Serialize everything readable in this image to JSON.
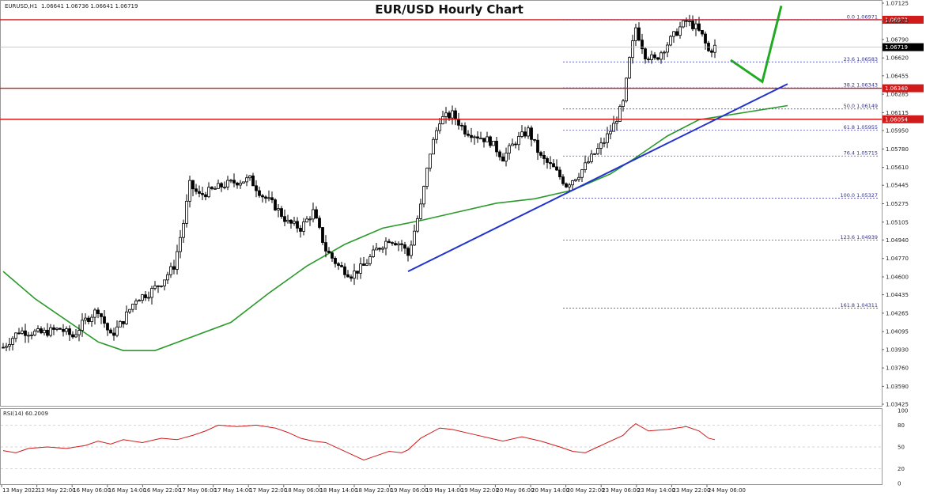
{
  "symbol_label": "EURUSD,H1",
  "ohlc_label": "1.06641 1.06736 1.06641 1.06719",
  "title": "EUR/USD Hourly Chart",
  "rsi_label": "RSI(14) 60.2009",
  "colors": {
    "candle": "#000000",
    "bull_fill": "#ffffff",
    "ma": "#2a9a2a",
    "trendline": "#2233cc",
    "resistance": "#d11a1a",
    "projection": "#22aa22",
    "fib": "#3333aa",
    "rsi": "#d11a1a",
    "grid": "#c8c8c8"
  },
  "chart_data": {
    "type": "candlestick",
    "title": "EUR/USD Hourly Chart",
    "ylim": [
      1.03425,
      1.07125
    ],
    "y_ticks": [
      "1.07125",
      "1.06960",
      "1.06790",
      "1.06620",
      "1.06455",
      "1.06285",
      "1.06115",
      "1.05950",
      "1.05780",
      "1.05610",
      "1.05445",
      "1.05275",
      "1.05105",
      "1.04940",
      "1.04770",
      "1.04600",
      "1.04435",
      "1.04265",
      "1.04095",
      "1.03930",
      "1.03760",
      "1.03590",
      "1.03425"
    ],
    "x_ticks": [
      "13 May 2022",
      "13 May 22:00",
      "16 May 06:00",
      "16 May 14:00",
      "16 May 22:00",
      "17 May 06:00",
      "17 May 14:00",
      "17 May 22:00",
      "18 May 06:00",
      "18 May 14:00",
      "18 May 22:00",
      "19 May 06:00",
      "19 May 14:00",
      "19 May 22:00",
      "20 May 06:00",
      "20 May 14:00",
      "20 May 22:00",
      "23 May 06:00",
      "23 May 14:00",
      "23 May 22:00",
      "24 May 06:00"
    ],
    "price_anchors": [
      [
        0,
        1.0395
      ],
      [
        5,
        1.041
      ],
      [
        12,
        1.0408
      ],
      [
        18,
        1.0412
      ],
      [
        22,
        1.0405
      ],
      [
        26,
        1.042
      ],
      [
        30,
        1.043
      ],
      [
        34,
        1.0405
      ],
      [
        38,
        1.042
      ],
      [
        42,
        1.044
      ],
      [
        46,
        1.0445
      ],
      [
        50,
        1.0455
      ],
      [
        54,
        1.047
      ],
      [
        57,
        1.051
      ],
      [
        59,
        1.0545
      ],
      [
        62,
        1.0535
      ],
      [
        66,
        1.054
      ],
      [
        70,
        1.0545
      ],
      [
        74,
        1.0548
      ],
      [
        78,
        1.055
      ],
      [
        82,
        1.0535
      ],
      [
        86,
        1.0525
      ],
      [
        90,
        1.051
      ],
      [
        94,
        1.0505
      ],
      [
        98,
        1.052
      ],
      [
        102,
        1.0485
      ],
      [
        106,
        1.047
      ],
      [
        110,
        1.0462
      ],
      [
        114,
        1.047
      ],
      [
        118,
        1.0485
      ],
      [
        122,
        1.0495
      ],
      [
        126,
        1.049
      ],
      [
        128,
        1.048
      ],
      [
        132,
        1.0525
      ],
      [
        135,
        1.0575
      ],
      [
        138,
        1.0605
      ],
      [
        142,
        1.061
      ],
      [
        146,
        1.0595
      ],
      [
        150,
        1.059
      ],
      [
        154,
        1.0585
      ],
      [
        158,
        1.057
      ],
      [
        162,
        1.0585
      ],
      [
        166,
        1.0595
      ],
      [
        170,
        1.057
      ],
      [
        174,
        1.056
      ],
      [
        178,
        1.0545
      ],
      [
        182,
        1.0555
      ],
      [
        186,
        1.057
      ],
      [
        190,
        1.0585
      ],
      [
        193,
        1.06
      ],
      [
        196,
        1.062
      ],
      [
        198,
        1.066
      ],
      [
        200,
        1.069
      ],
      [
        203,
        1.0665
      ],
      [
        206,
        1.066
      ],
      [
        210,
        1.0675
      ],
      [
        214,
        1.069
      ],
      [
        216,
        1.0696
      ],
      [
        219,
        1.069
      ],
      [
        221,
        1.0682
      ],
      [
        223,
        1.0668
      ],
      [
        225,
        1.0672
      ]
    ],
    "bar_count": 226,
    "moving_average": [
      [
        0,
        1.0465
      ],
      [
        10,
        1.044
      ],
      [
        20,
        1.042
      ],
      [
        30,
        1.04
      ],
      [
        38,
        1.0392
      ],
      [
        48,
        1.0392
      ],
      [
        60,
        1.0405
      ],
      [
        72,
        1.0418
      ],
      [
        84,
        1.0445
      ],
      [
        96,
        1.047
      ],
      [
        108,
        1.049
      ],
      [
        120,
        1.0505
      ],
      [
        132,
        1.0512
      ],
      [
        144,
        1.052
      ],
      [
        156,
        1.0528
      ],
      [
        168,
        1.0532
      ],
      [
        180,
        1.054
      ],
      [
        192,
        1.0555
      ],
      [
        200,
        1.057
      ],
      [
        210,
        1.059
      ],
      [
        220,
        1.0605
      ],
      [
        248,
        1.0618
      ]
    ],
    "trendline": {
      "start": [
        128,
        1.0465
      ],
      "end": [
        248,
        1.0638
      ]
    },
    "resistance_levels": [
      {
        "price": 1.06972,
        "label": "1.06972"
      },
      {
        "price": 1.0634,
        "label": "1.06340"
      },
      {
        "price": 1.06054,
        "label": "1.06054"
      }
    ],
    "current_price": {
      "price": 1.06719,
      "label": "1.06719"
    },
    "fibonacci": [
      {
        "label": "0.0  1.06971",
        "price": 1.06971
      },
      {
        "label": "23.6  1.06583",
        "price": 1.06583
      },
      {
        "label": "38.2  1.06343",
        "price": 1.06343
      },
      {
        "label": "50.0  1.06149",
        "price": 1.06149
      },
      {
        "label": "61.8  1.05955",
        "price": 1.05955
      },
      {
        "label": "76.4  1.05715",
        "price": 1.05715
      },
      {
        "label": "100.0  1.05327",
        "price": 1.05327
      },
      {
        "label": "123.6  1.04939",
        "price": 1.04939
      },
      {
        "label": "161.8  1.04311",
        "price": 1.04311
      }
    ],
    "projection": [
      [
        230,
        1.066
      ],
      [
        240,
        1.064
      ],
      [
        246,
        1.071
      ]
    ],
    "rsi": {
      "ylim": [
        0,
        100
      ],
      "y_ticks": [
        "100",
        "80",
        "50",
        "20",
        "0"
      ],
      "values": [
        [
          0,
          45
        ],
        [
          4,
          42
        ],
        [
          8,
          48
        ],
        [
          14,
          50
        ],
        [
          20,
          48
        ],
        [
          26,
          52
        ],
        [
          30,
          58
        ],
        [
          34,
          54
        ],
        [
          38,
          60
        ],
        [
          44,
          56
        ],
        [
          50,
          62
        ],
        [
          55,
          60
        ],
        [
          60,
          66
        ],
        [
          64,
          72
        ],
        [
          68,
          80
        ],
        [
          74,
          78
        ],
        [
          80,
          80
        ],
        [
          86,
          76
        ],
        [
          90,
          70
        ],
        [
          94,
          62
        ],
        [
          98,
          58
        ],
        [
          102,
          56
        ],
        [
          106,
          48
        ],
        [
          110,
          40
        ],
        [
          114,
          32
        ],
        [
          118,
          38
        ],
        [
          122,
          44
        ],
        [
          126,
          42
        ],
        [
          128,
          46
        ],
        [
          132,
          62
        ],
        [
          138,
          76
        ],
        [
          142,
          74
        ],
        [
          148,
          68
        ],
        [
          154,
          62
        ],
        [
          158,
          58
        ],
        [
          164,
          64
        ],
        [
          170,
          58
        ],
        [
          176,
          50
        ],
        [
          180,
          44
        ],
        [
          184,
          42
        ],
        [
          188,
          50
        ],
        [
          192,
          58
        ],
        [
          196,
          66
        ],
        [
          198,
          75
        ],
        [
          200,
          82
        ],
        [
          204,
          72
        ],
        [
          210,
          74
        ],
        [
          216,
          78
        ],
        [
          220,
          72
        ],
        [
          223,
          62
        ],
        [
          225,
          60
        ]
      ]
    }
  }
}
